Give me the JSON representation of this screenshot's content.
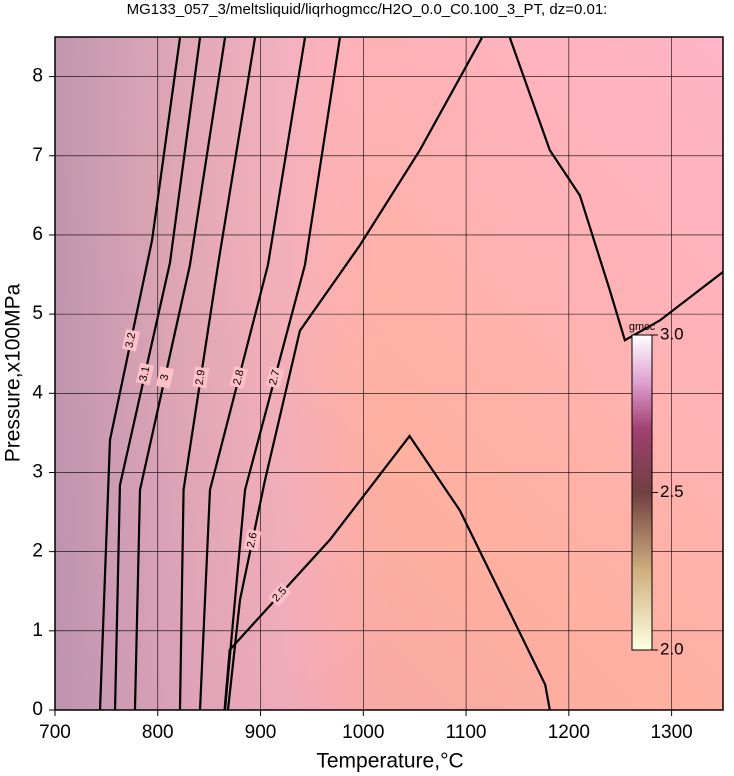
{
  "chart_data": {
    "type": "contour",
    "title": "MG133_057_3/meltsliquid/liqrhogmcc/H2O_0.0_C0.100_3_PT, dz=0.01:",
    "x_label": "Temperature,°C",
    "y_label": "Pressure,x100MPa",
    "xlim": [
      700,
      1350
    ],
    "ylim": [
      0,
      8.5
    ],
    "xticks": [
      700,
      800,
      900,
      1000,
      1100,
      1200,
      1300
    ],
    "yticks": [
      0,
      1,
      2,
      3,
      4,
      5,
      6,
      7,
      8
    ],
    "grid": true,
    "contours": [
      {
        "level": 2.5,
        "color": "#000000",
        "x": [
          865,
          870,
          967.5,
          1045,
          1094,
          1177,
          1181.5
        ],
        "y": [
          0,
          0.76,
          2.15,
          3.46,
          2.52,
          0.32,
          0
        ]
      },
      {
        "level": 2.6,
        "color": "#000000",
        "x": [
          868.3,
          880,
          904.3,
          938.3,
          996.7,
          1055,
          1115.4,
          null,
          1142.6,
          1181.5,
          1210.7,
          1239.9,
          1254.5,
          1288.5,
          1349.8
        ],
        "y": [
          0,
          1.39,
          2.9,
          4.79,
          5.87,
          7.07,
          8.49,
          null,
          8.49,
          7.07,
          6.5,
          5.3,
          4.67,
          4.92,
          5.53
        ]
      },
      {
        "level": 2.7,
        "color": "#000000",
        "x": [
          865.4,
          884.9,
          943.2,
          977.2
        ],
        "y": [
          0,
          2.78,
          5.62,
          8.49
        ]
      },
      {
        "level": 2.8,
        "color": "#000000",
        "x": [
          841.1,
          850.8,
          907.2,
          943.2
        ],
        "y": [
          0,
          2.78,
          5.62,
          8.49
        ]
      },
      {
        "level": 2.9,
        "color": "#000000",
        "x": [
          821.6,
          825.1,
          858.6,
          894.6
        ],
        "y": [
          0,
          2.78,
          5.62,
          8.49
        ]
      },
      {
        "level": 3,
        "color": "#000000",
        "x": [
          777.8,
          782.7,
          831.3,
          865.4
        ],
        "y": [
          0,
          2.78,
          5.62,
          8.49
        ]
      },
      {
        "level": 3.1,
        "color": "#000000",
        "x": [
          758.4,
          763.2,
          811.9,
          841.1
        ],
        "y": [
          0,
          2.84,
          5.65,
          8.49
        ]
      },
      {
        "level": 3.2,
        "color": "#000000",
        "x": [
          743.8,
          753.5,
          794.4,
          821.6
        ],
        "y": [
          0,
          3.41,
          5.93,
          8.49
        ]
      }
    ],
    "colorbar": {
      "label": "gmcc",
      "lim": [
        2,
        3
      ],
      "ticks": [
        {
          "value": 2,
          "label": "2.0"
        },
        {
          "value": 2.5,
          "label": "2.5"
        },
        {
          "value": 3,
          "label": "3.0"
        }
      ]
    }
  }
}
